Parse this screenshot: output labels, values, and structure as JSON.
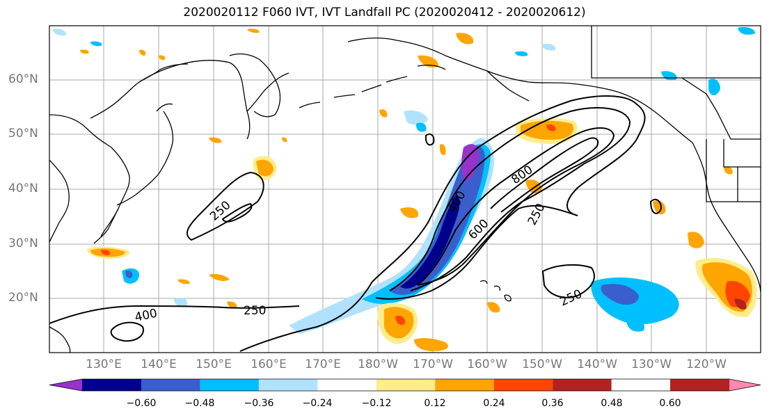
{
  "title": "2020020112 F060 IVT, IVT Landfall PC (2020020412 - 2020020612)",
  "map": {
    "lat_labels": [
      "60°N",
      "50°N",
      "40°N",
      "30°N",
      "20°N"
    ],
    "lon_labels": [
      "130°E",
      "140°E",
      "150°E",
      "160°E",
      "170°E",
      "180°W",
      "170°W",
      "160°W",
      "150°W",
      "140°W",
      "130°W",
      "120°W"
    ],
    "contour_labels": [
      "250",
      "250",
      "250",
      "250",
      "400",
      "400",
      "600",
      "800"
    ],
    "colors": {
      "land_line": "#000000",
      "grid": "#a0a0a0",
      "contour": "#000000"
    }
  },
  "colorbar": {
    "levels": [
      "−0.60",
      "−0.48",
      "−0.36",
      "−0.24",
      "−0.12",
      "0.12",
      "0.24",
      "0.36",
      "0.48",
      "0.60"
    ],
    "colors": [
      "#9932CC",
      "#00008B",
      "#3A5FCD",
      "#00BFFF",
      "#B0E2FF",
      "#FFFFFF",
      "#FFEC8B",
      "#FFA500",
      "#FF4500",
      "#B22222",
      "#FF89B0"
    ]
  }
}
